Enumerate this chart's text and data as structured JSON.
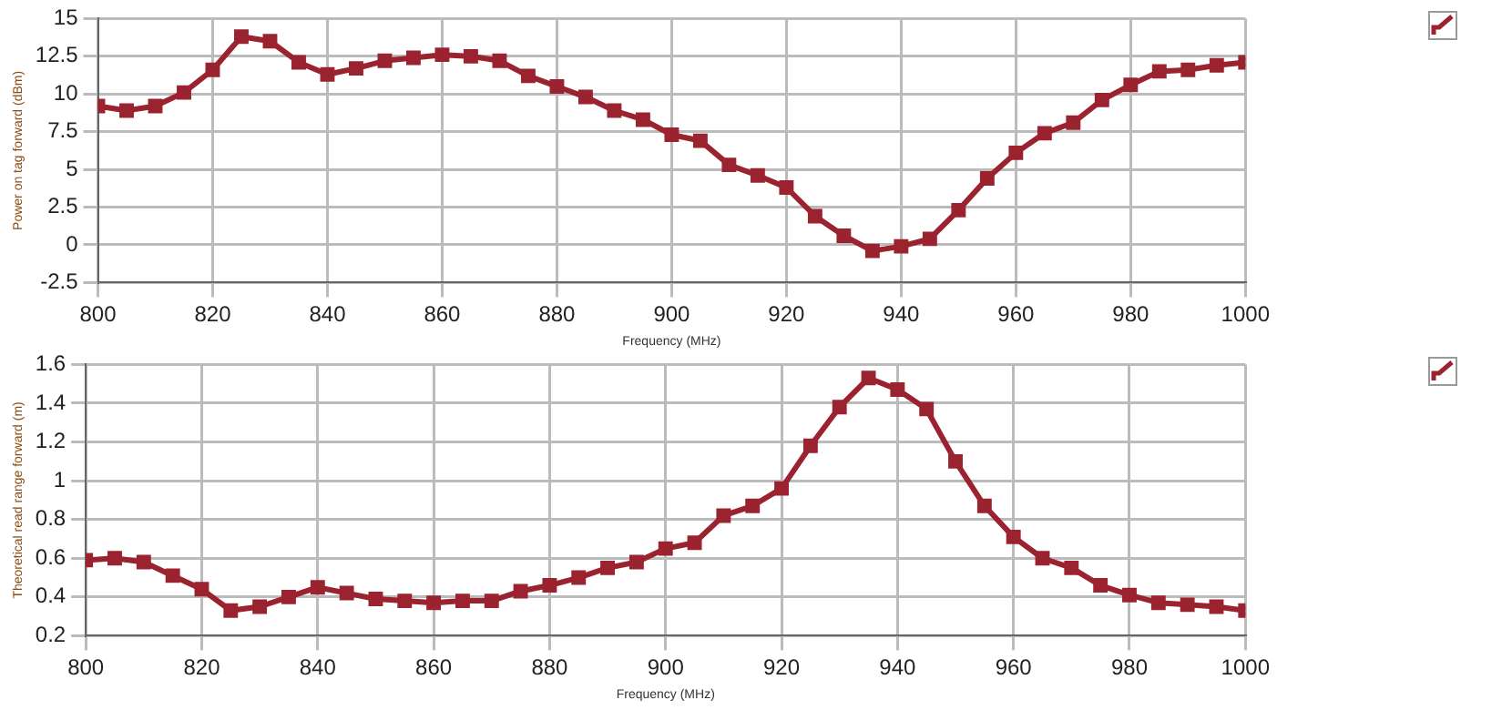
{
  "chart_data": [
    {
      "type": "line",
      "xlabel": "Frequency (MHz)",
      "ylabel": "Power on tag forward (dBm)",
      "x": [
        800,
        805,
        810,
        815,
        820,
        825,
        830,
        835,
        840,
        845,
        850,
        855,
        860,
        865,
        870,
        875,
        880,
        885,
        890,
        895,
        900,
        905,
        910,
        915,
        920,
        925,
        930,
        935,
        940,
        945,
        950,
        955,
        960,
        965,
        970,
        975,
        980,
        985,
        990,
        995,
        1000
      ],
      "series": [
        {
          "color": "#9b2330",
          "values": [
            9.2,
            8.9,
            9.2,
            10.1,
            11.6,
            13.8,
            13.5,
            12.1,
            11.3,
            11.7,
            12.2,
            12.4,
            12.6,
            12.5,
            12.2,
            11.2,
            10.5,
            9.8,
            8.9,
            8.3,
            7.3,
            6.9,
            5.3,
            4.6,
            3.8,
            1.9,
            0.6,
            -0.4,
            -0.1,
            0.4,
            2.3,
            4.4,
            6.1,
            7.4,
            8.1,
            9.6,
            10.6,
            11.5,
            11.6,
            11.9,
            12.1
          ]
        }
      ],
      "xlim": [
        800,
        1000
      ],
      "xticks": [
        800,
        820,
        840,
        860,
        880,
        900,
        920,
        940,
        960,
        980,
        1000
      ],
      "ylim": [
        -2.5,
        15
      ],
      "yticks": [
        -2.5,
        0,
        2.5,
        5,
        7.5,
        10,
        12.5,
        15
      ],
      "grid": true,
      "legend": false,
      "marker": "square",
      "line_style": "solid"
    },
    {
      "type": "line",
      "xlabel": "Frequency (MHz)",
      "ylabel": "Theoretical read range forward (m)",
      "x": [
        800,
        805,
        810,
        815,
        820,
        825,
        830,
        835,
        840,
        845,
        850,
        855,
        860,
        865,
        870,
        875,
        880,
        885,
        890,
        895,
        900,
        905,
        910,
        915,
        920,
        925,
        930,
        935,
        940,
        945,
        950,
        955,
        960,
        965,
        970,
        975,
        980,
        985,
        990,
        995,
        1000
      ],
      "series": [
        {
          "color": "#9b2330",
          "values": [
            0.59,
            0.6,
            0.58,
            0.51,
            0.44,
            0.33,
            0.35,
            0.4,
            0.45,
            0.42,
            0.39,
            0.38,
            0.37,
            0.38,
            0.38,
            0.43,
            0.46,
            0.5,
            0.55,
            0.58,
            0.65,
            0.68,
            0.82,
            0.87,
            0.96,
            1.18,
            1.38,
            1.53,
            1.47,
            1.37,
            1.1,
            0.87,
            0.71,
            0.6,
            0.55,
            0.46,
            0.41,
            0.37,
            0.36,
            0.35,
            0.33
          ]
        }
      ],
      "xlim": [
        800,
        1000
      ],
      "xticks": [
        800,
        820,
        840,
        860,
        880,
        900,
        920,
        940,
        960,
        980,
        1000
      ],
      "ylim": [
        0.2,
        1.6
      ],
      "yticks": [
        0.2,
        0.4,
        0.6,
        0.8,
        1,
        1.2,
        1.4,
        1.6
      ],
      "grid": true,
      "legend": false,
      "marker": "square",
      "line_style": "solid"
    }
  ]
}
